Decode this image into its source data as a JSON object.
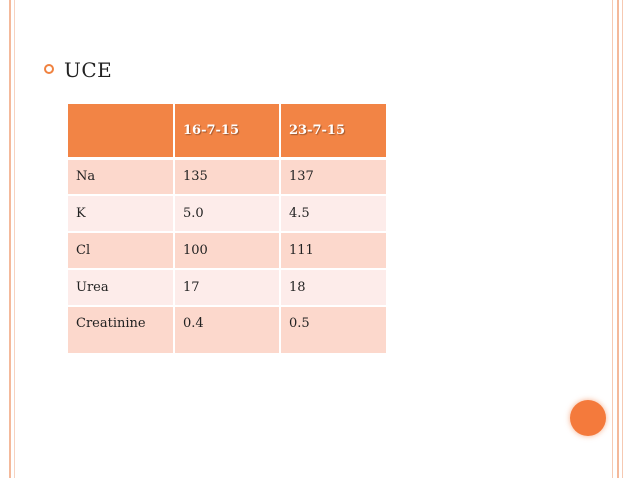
{
  "slide": {
    "heading": "UCE",
    "table": {
      "headers": [
        "",
        "16-7-15",
        "23-7-15"
      ],
      "rows": [
        [
          "Na",
          "135",
          "137"
        ],
        [
          "K",
          "5.0",
          "4.5"
        ],
        [
          "Cl",
          "100",
          "111"
        ],
        [
          "Urea",
          "17",
          "18"
        ],
        [
          "Creatinine",
          "0.4",
          "0.5"
        ]
      ]
    }
  },
  "colors": {
    "accent": "#f28445",
    "row_dark": "#fcd8cc",
    "row_light": "#fdecea",
    "border": "#f4b99b"
  },
  "icons": {
    "bullet": "ring-bullet-icon",
    "decoration": "orange-circle"
  }
}
